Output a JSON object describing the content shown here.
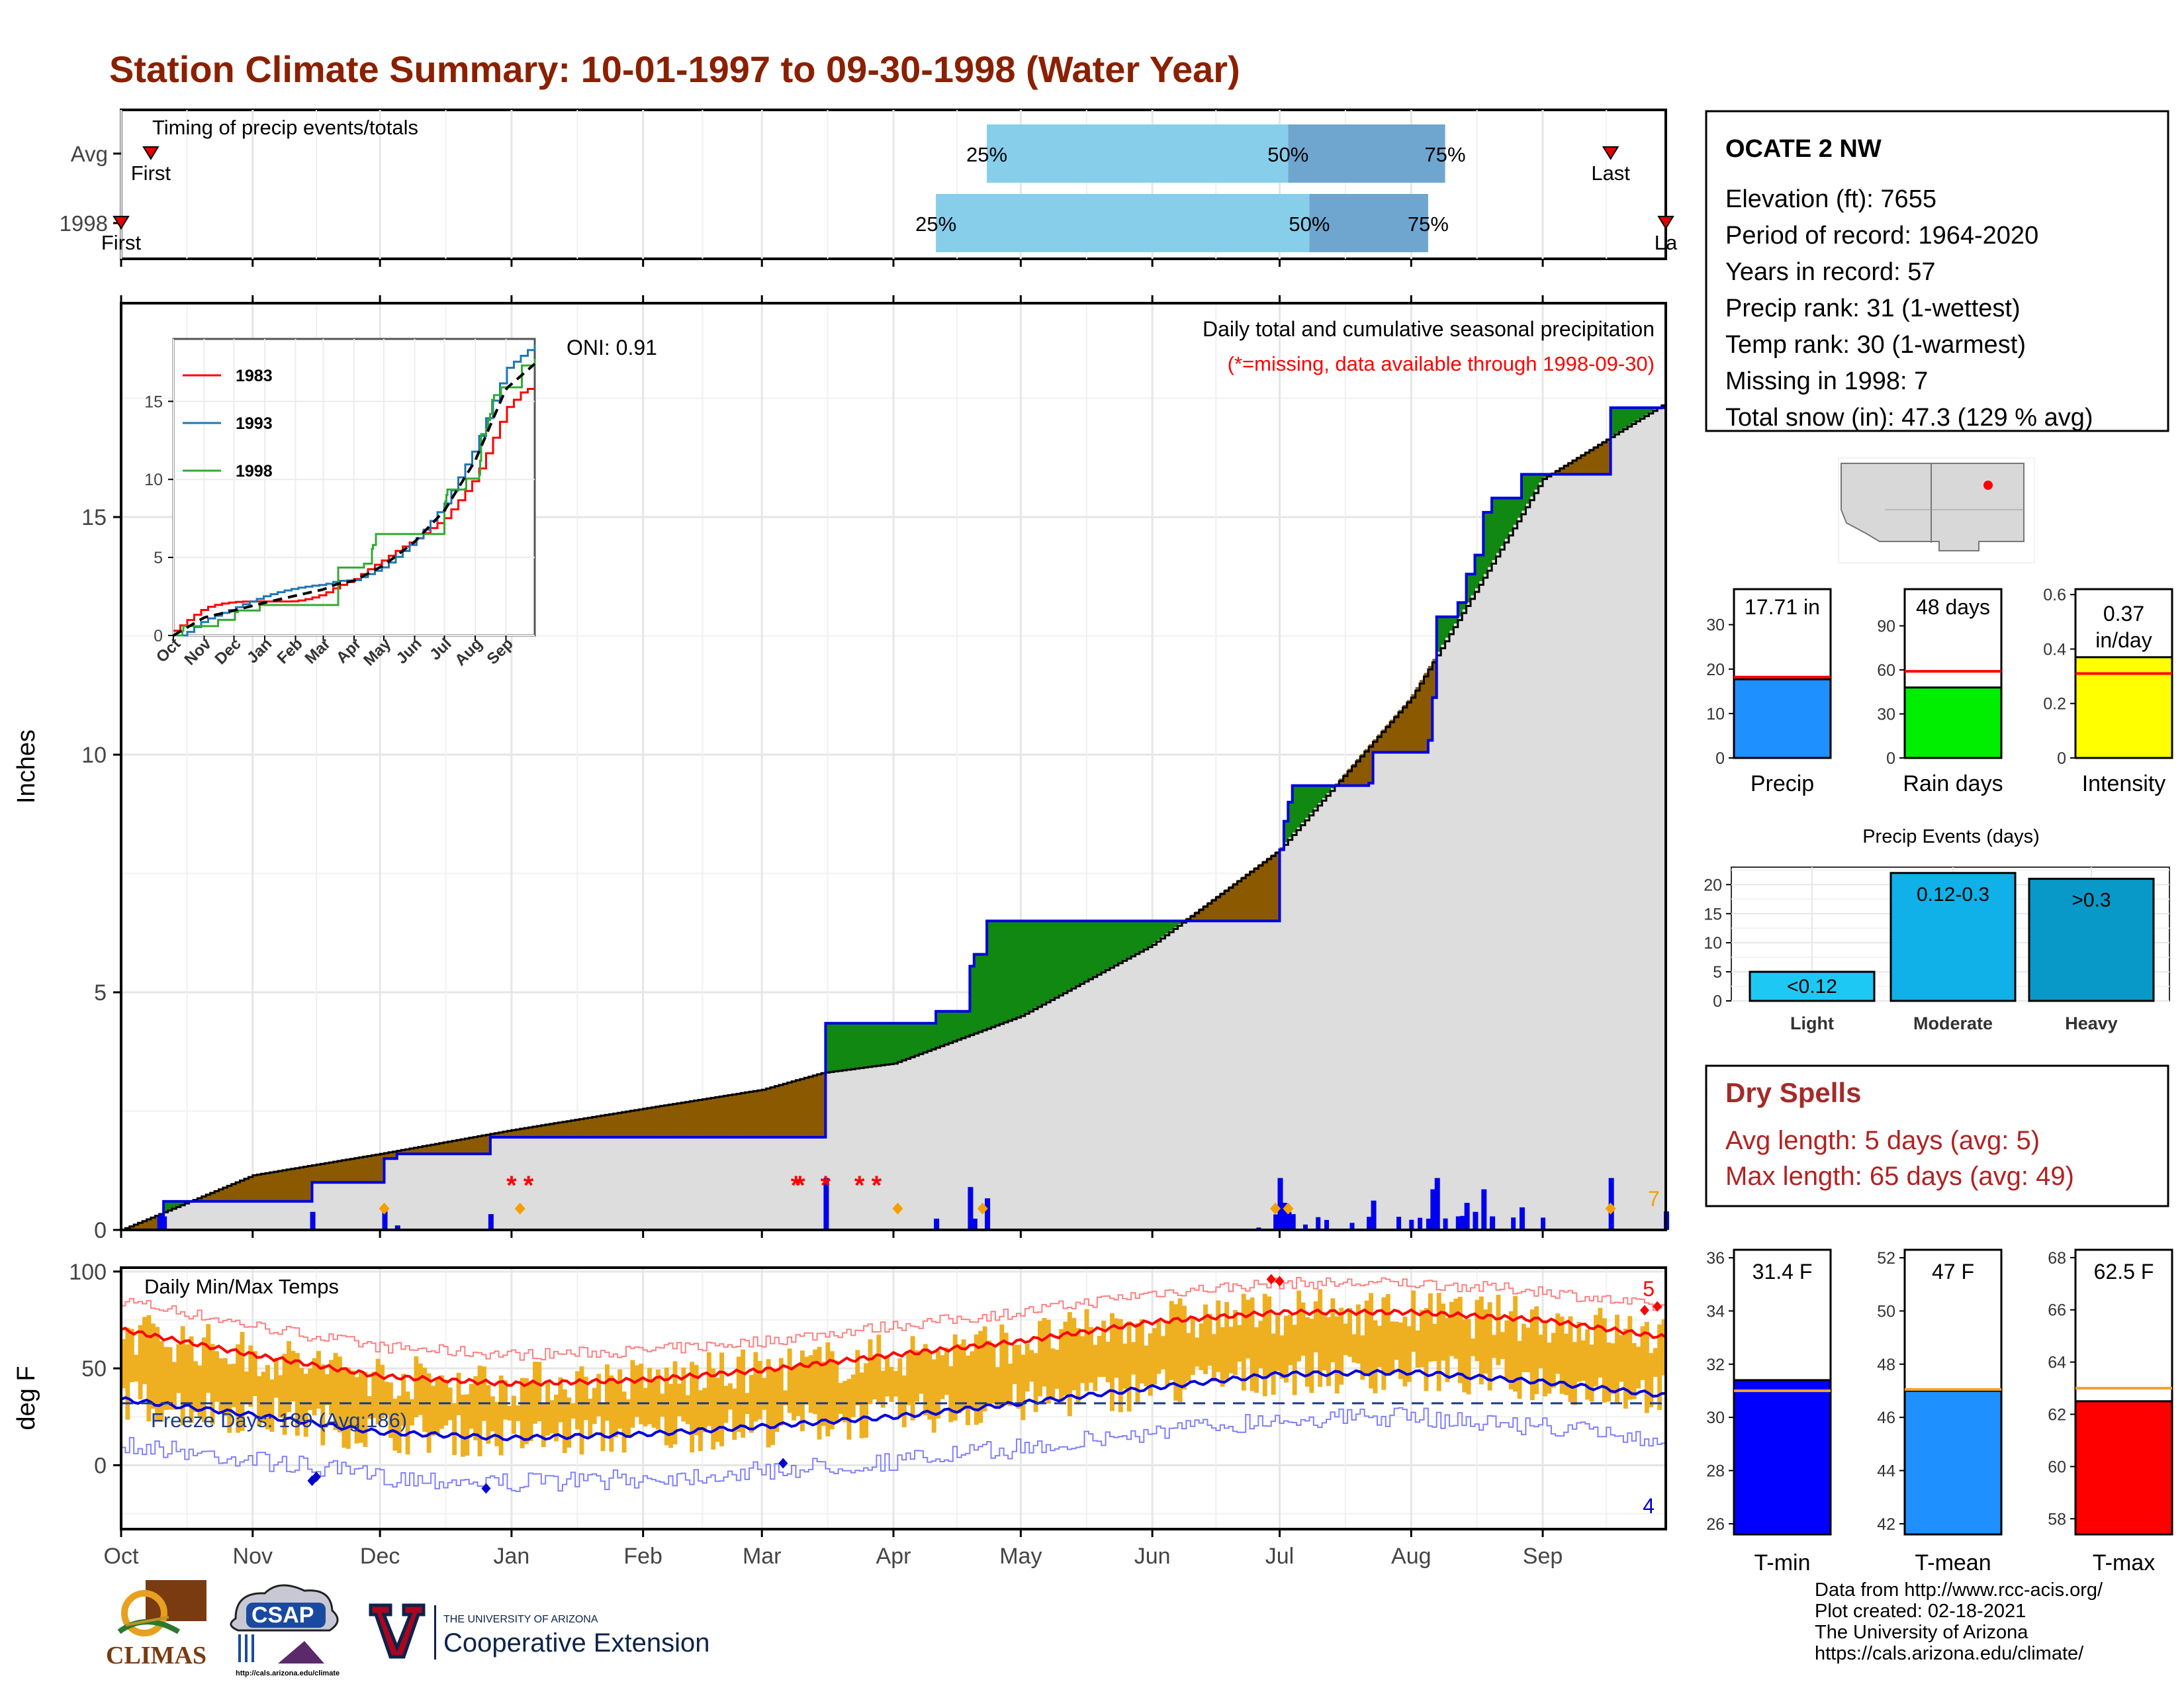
{
  "title": "Station Climate Summary: 10-01-1997 to 09-30-1998 (Water Year)",
  "timing": {
    "label": "Timing of precip events/totals",
    "rows": [
      {
        "name": "Avg",
        "first_label": "First",
        "last_label": "Last",
        "first_date": "1997-10-08",
        "last_date": "1998-09-17",
        "q25_date": "1998-04-23",
        "q50_date": "1998-07-03",
        "q75_date": "1998-08-09",
        "q25_label": "25%",
        "q50_label": "50%",
        "q75_label": "75%"
      },
      {
        "name": "1998",
        "first_label": "First",
        "last_label": "La",
        "first_date": "1997-10-01",
        "last_date": "1998-09-30",
        "q25_date": "1998-04-11",
        "q50_date": "1998-07-08",
        "q75_date": "1998-08-05",
        "q25_label": "25%",
        "q50_label": "50%",
        "q75_label": "75%"
      }
    ]
  },
  "precip_panel": {
    "ylabel": "Inches",
    "ylim": [
      0,
      19.5
    ],
    "yticks": [
      "0",
      "5",
      "10",
      "15"
    ],
    "oni": "ONI: 0.91",
    "subtitle": "Daily total and cumulative seasonal precipitation",
    "missing_note": "(*=missing, data available through 1998-09-30)",
    "missing_count": "7",
    "missing_dates": [
      "1998-01-01",
      "1998-01-05",
      "1998-03-09",
      "1998-03-10",
      "1998-03-16",
      "1998-03-24",
      "1998-03-28"
    ],
    "colors": {
      "above": "#118811",
      "below": "#8b5a00",
      "avg_fill": "#dddddd",
      "line": "#0000e0"
    }
  },
  "inset": {
    "yticks": [
      "0",
      "5",
      "10",
      "15"
    ],
    "xticks": [
      "Oct",
      "Nov",
      "Dec",
      "Jan",
      "Feb",
      "Mar",
      "Apr",
      "May",
      "Jun",
      "Jul",
      "Aug",
      "Sep"
    ],
    "ylim": [
      0,
      19
    ],
    "legend": [
      {
        "name": "1983",
        "color": "#ff0000"
      },
      {
        "name": "1993",
        "color": "#1f77b4"
      },
      {
        "name": "1998",
        "color": "#33aa33"
      }
    ]
  },
  "temp_panel": {
    "ylabel": "deg F",
    "ylim": [
      -33,
      102
    ],
    "yticks": [
      "0",
      "50",
      "100"
    ],
    "label": "Daily Min/Max Temps",
    "freeze_label": "Freeze Days: 189 (Avg:186)",
    "freeze_line_value": 32,
    "max_count": "5",
    "min_count": "4",
    "colors": {
      "bars": "#eeb020",
      "max": "#ff0000",
      "min": "#0000dd"
    }
  },
  "x_axis_months": [
    "Oct",
    "Nov",
    "Dec",
    "Jan",
    "Feb",
    "Mar",
    "Apr",
    "May",
    "Jun",
    "Jul",
    "Aug",
    "Sep"
  ],
  "station": {
    "name": "OCATE 2 NW",
    "lines": [
      "Elevation (ft): 7655",
      "Period of record: 1964-2020",
      "Years in record: 57",
      "Precip rank: 31 (1-wettest)",
      "Temp rank: 30 (1-warmest)",
      "Missing in 1998: 7",
      "Total snow (in): 47.3 (129 % avg)"
    ]
  },
  "summary_bars": [
    {
      "label": "Precip",
      "value_label": "17.71 in",
      "value": 17.71,
      "avg": 18.2,
      "ylim": [
        0,
        38
      ],
      "ticks": [
        0,
        10,
        20,
        30
      ],
      "color": "#1e90ff"
    },
    {
      "label": "Rain days",
      "value_label": "48 days",
      "value": 48,
      "avg": 59,
      "ylim": [
        0,
        115
      ],
      "ticks": [
        0,
        30,
        60,
        90
      ],
      "color": "#00ee00"
    },
    {
      "label": "Intensity",
      "value_label": "0.37 in/day",
      "value": 0.37,
      "avg": 0.31,
      "ylim": [
        0,
        0.62
      ],
      "ticks": [
        0.0,
        0.2,
        0.4,
        0.6
      ],
      "color": "#ffff00"
    }
  ],
  "precip_events": {
    "title": "Precip Events (days)",
    "ylim": [
      0,
      23
    ],
    "yticks": [
      0,
      5,
      10,
      15,
      20
    ],
    "bars": [
      {
        "name": "Light",
        "label": "<0.12",
        "value": 5,
        "color": "#1ec8f5"
      },
      {
        "name": "Moderate",
        "label": "0.12-0.3",
        "value": 22,
        "color": "#10b0e8"
      },
      {
        "name": "Heavy",
        "label": ">0.3",
        "value": 21,
        "color": "#0899c8"
      }
    ]
  },
  "dry_spells": {
    "title": "Dry Spells",
    "avg_line": "Avg length: 5 days (avg: 5)",
    "max_line": "Max length: 65 days (avg: 49)"
  },
  "temp_bars": [
    {
      "label": "T-min",
      "value_label": "31.4 F",
      "value": 31.4,
      "avg": 31.0,
      "ylim": [
        25.6,
        36.3
      ],
      "ticks": [
        28,
        30,
        32,
        34,
        36,
        26
      ],
      "color": "#0000ff"
    },
    {
      "label": "T-mean",
      "value_label": "47 F",
      "value": 47.0,
      "avg": 47.05,
      "ylim": [
        41.6,
        52.3
      ],
      "ticks": [
        42,
        44,
        46,
        48,
        50,
        52
      ],
      "color": "#1e90ff"
    },
    {
      "label": "T-max",
      "value_label": "62.5 F",
      "value": 62.5,
      "avg": 63.0,
      "ylim": [
        57.4,
        68.3
      ],
      "ticks": [
        58,
        60,
        62,
        64,
        66,
        68
      ],
      "color": "#ff0000"
    }
  ],
  "footer": [
    "Data from http://www.rcc-acis.org/",
    "Plot created: 02-18-2021",
    "The University of Arizona",
    "https://cals.arizona.edu/climate/"
  ],
  "logos": {
    "climas": "CLIMAS",
    "csap": "CSAP",
    "csap_url": "http://cals.arizona.edu/climate",
    "ua_small": "THE UNIVERSITY OF ARIZONA",
    "ua_big": "Cooperative Extension"
  },
  "chart_data": {
    "type": "area",
    "title": "Daily total and cumulative seasonal precipitation",
    "ylabel": "Inches",
    "x_range": [
      "1997-10-01",
      "1998-09-30"
    ],
    "ylim": [
      0,
      19.5
    ],
    "series": [
      {
        "name": "1998",
        "x": [
          "1997-10-01",
          "1997-10-10",
          "1997-10-11",
          "1997-10-25",
          "1997-11-15",
          "1997-12-02",
          "1997-12-05",
          "1997-12-27",
          "1998-03-15",
          "1998-03-16",
          "1998-04-11",
          "1998-04-19",
          "1998-04-20",
          "1998-04-23",
          "1998-06-27",
          "1998-07-01",
          "1998-07-02",
          "1998-07-03",
          "1998-07-04",
          "1998-07-22",
          "1998-07-23",
          "1998-08-05",
          "1998-08-06",
          "1998-08-07",
          "1998-08-12",
          "1998-08-14",
          "1998-08-16",
          "1998-08-18",
          "1998-08-20",
          "1998-08-27",
          "1998-09-17",
          "1998-09-30"
        ],
        "values": [
          0.0,
          0.3,
          0.6,
          0.6,
          1.0,
          1.5,
          1.6,
          1.95,
          1.95,
          4.35,
          4.6,
          5.55,
          5.8,
          6.5,
          6.5,
          8.0,
          8.6,
          9.0,
          9.35,
          9.4,
          10.05,
          10.3,
          11.2,
          12.9,
          13.2,
          13.8,
          14.2,
          15.1,
          15.4,
          15.9,
          17.3,
          17.71
        ]
      },
      {
        "name": "Avg",
        "x": [
          "1997-10-01",
          "1997-11-01",
          "1997-12-01",
          "1998-01-01",
          "1998-02-01",
          "1998-03-01",
          "1998-03-15",
          "1998-04-01",
          "1998-05-01",
          "1998-06-01",
          "1998-07-01",
          "1998-08-01",
          "1998-09-01",
          "1998-09-30"
        ],
        "values": [
          0.0,
          1.15,
          1.6,
          2.1,
          2.55,
          2.95,
          3.3,
          3.5,
          4.5,
          6.0,
          8.0,
          11.2,
          15.8,
          17.4
        ]
      }
    ],
    "temperature": {
      "ylabel": "deg F",
      "ylim": [
        -33,
        102
      ],
      "avg_max": {
        "x": [
          "1997-10-01",
          "1997-11-01",
          "1997-12-01",
          "1998-01-01",
          "1998-02-01",
          "1998-03-01",
          "1998-04-01",
          "1998-05-01",
          "1998-06-01",
          "1998-07-01",
          "1998-08-01",
          "1998-09-01",
          "1998-09-30"
        ],
        "values": [
          70,
          57,
          46,
          42,
          44,
          49,
          57,
          64,
          74,
          79,
          79,
          75,
          66
        ]
      },
      "avg_min": {
        "x": [
          "1997-10-01",
          "1997-11-01",
          "1997-12-01",
          "1998-01-01",
          "1998-02-01",
          "1998-03-01",
          "1998-04-01",
          "1998-05-01",
          "1998-06-01",
          "1998-07-01",
          "1998-08-01",
          "1998-09-01",
          "1998-09-30"
        ],
        "values": [
          34,
          26,
          17,
          14,
          16,
          20,
          25,
          32,
          40,
          47,
          48,
          43,
          36
        ]
      },
      "freeze_threshold": 32,
      "freeze_days": 189,
      "freeze_days_avg": 186
    }
  }
}
